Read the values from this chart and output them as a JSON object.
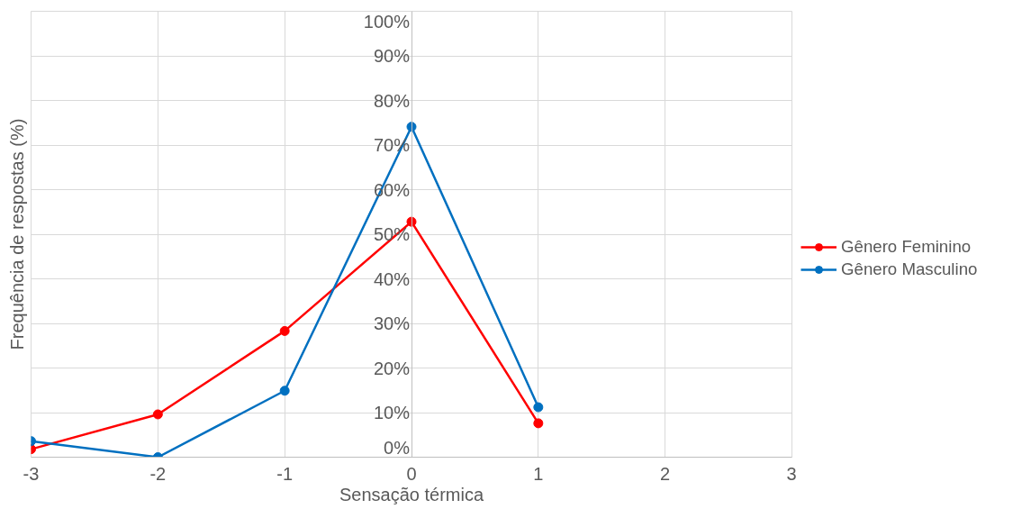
{
  "chart_data": {
    "type": "line",
    "xlabel": "Sensação térmica",
    "ylabel": "Frequência de respostas (%)",
    "x": [
      -3,
      -2,
      -1,
      0,
      1
    ],
    "series": [
      {
        "name": "Gênero Feminino",
        "color": "#ff0000",
        "values": [
          1.8,
          9.6,
          28.3,
          52.8,
          7.6
        ]
      },
      {
        "name": "Gênero Masculino",
        "color": "#0070c0",
        "values": [
          3.6,
          0,
          14.9,
          74.1,
          11.2
        ]
      }
    ],
    "xlim": [
      -3,
      3
    ],
    "xticks": [
      -3,
      -2,
      -1,
      0,
      1,
      2,
      3
    ],
    "ylim": [
      0,
      100
    ],
    "yticks": [
      {
        "value": 0,
        "label": "0%"
      },
      {
        "value": 10,
        "label": "10%"
      },
      {
        "value": 20,
        "label": "20%"
      },
      {
        "value": 30,
        "label": "30%"
      },
      {
        "value": 40,
        "label": "40%"
      },
      {
        "value": 50,
        "label": "50%"
      },
      {
        "value": 60,
        "label": "60%"
      },
      {
        "value": 70,
        "label": "70%"
      },
      {
        "value": 80,
        "label": "80%"
      },
      {
        "value": 90,
        "label": "90%"
      },
      {
        "value": 100,
        "label": "100%"
      }
    ],
    "grid": true,
    "legend": "right",
    "marker": "circle",
    "line_style": "solid"
  }
}
